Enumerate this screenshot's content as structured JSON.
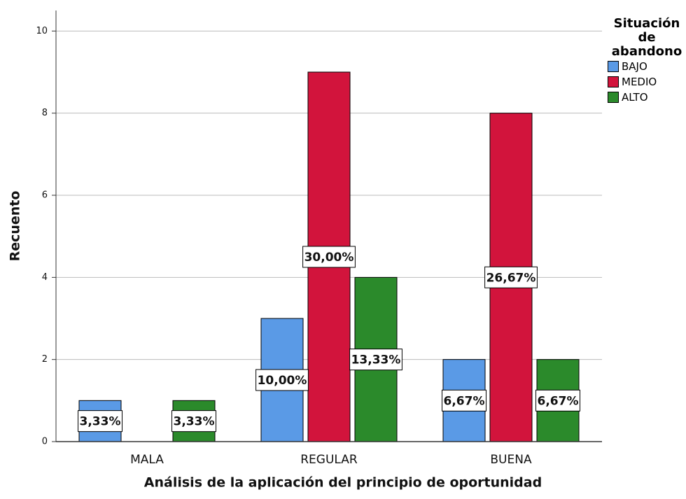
{
  "chart_data": {
    "type": "bar",
    "x_label": "Análisis de la aplicación del principio de oportunidad",
    "y_label": "Recuento",
    "legend_title": "Situación de abandono",
    "legend": "top-right",
    "grid": true,
    "categories": [
      "MALA",
      "REGULAR",
      "BUENA"
    ],
    "series": [
      {
        "name": "BAJO",
        "color": "#5a9ae6",
        "values": [
          1,
          3,
          2
        ],
        "data_labels": [
          "3,33%",
          "10,00%",
          "6,67%"
        ]
      },
      {
        "name": "MEDIO",
        "color": "#d2143c",
        "values": [
          null,
          9,
          8
        ],
        "data_labels": [
          null,
          "30,00%",
          "26,67%"
        ]
      },
      {
        "name": "ALTO",
        "color": "#2b8a2b",
        "values": [
          1,
          4,
          2
        ],
        "data_labels": [
          "3,33%",
          "13,33%",
          "6,67%"
        ]
      }
    ],
    "ylim": [
      0,
      10.5
    ],
    "yticks": [
      0,
      2,
      4,
      6,
      8,
      10
    ]
  }
}
